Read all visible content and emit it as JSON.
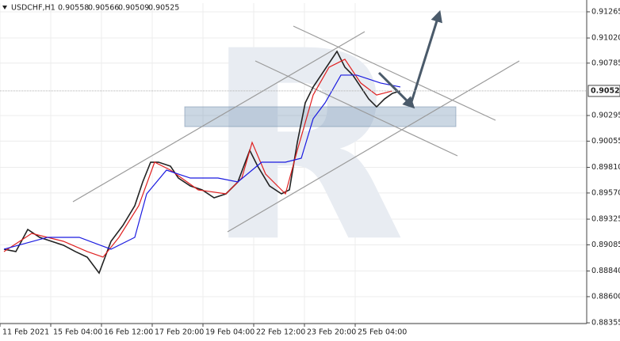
{
  "chart_data": {
    "type": "line",
    "title": "USDCHF,H1",
    "last_ohlc": [
      0.90558,
      0.90566,
      0.90509,
      0.90525
    ],
    "last_price": 0.90525,
    "xlim": [
      0,
      370
    ],
    "xticks": [
      {
        "value": 0,
        "label": "11 Feb 2021"
      },
      {
        "value": 32,
        "label": "15 Feb 04:00"
      },
      {
        "value": 64,
        "label": "16 Feb 12:00"
      },
      {
        "value": 96,
        "label": "17 Feb 20:00"
      },
      {
        "value": 128,
        "label": "19 Feb 04:00"
      },
      {
        "value": 160,
        "label": "22 Feb 12:00"
      },
      {
        "value": 192,
        "label": "23 Feb 20:00"
      },
      {
        "value": 224,
        "label": "25 Feb 04:00"
      }
    ],
    "ylim": [
      0.88348,
      0.91346
    ],
    "yticks": [
      0.91265,
      {
        "value": 0.9102,
        "label": "0.91020"
      },
      0.90785,
      0.90295,
      0.90055,
      {
        "value": 0.8981,
        "label": "0.89810"
      },
      {
        "value": 0.8957,
        "label": "0.89570"
      },
      0.89325,
      0.89085,
      {
        "value": 0.8884,
        "label": "0.88840"
      },
      {
        "value": 0.886,
        "label": "0.88600"
      },
      0.88355
    ],
    "grid": true,
    "series": [
      {
        "color": "#222222",
        "x": [
          2.5,
          10,
          17.5,
          25,
          32.5,
          40,
          47.5,
          55,
          62.5,
          70,
          77.5,
          85,
          90,
          95,
          100,
          107.5,
          112.5,
          120,
          127.5,
          135,
          142.5,
          150,
          157.5,
          162.5,
          170,
          177.5,
          182.5,
          187.5,
          192.5,
          197.5,
          202.5,
          207.5,
          212.5,
          217.5,
          222.5,
          227.5,
          232.5,
          237.5,
          242.5,
          247.5,
          252.5
        ],
        "values": [
          0.89044,
          0.89022,
          0.89229,
          0.89155,
          0.89118,
          0.89081,
          0.89022,
          0.8897,
          0.88821,
          0.89118,
          0.89266,
          0.89451,
          0.89673,
          0.89858,
          0.89858,
          0.89821,
          0.8971,
          0.89636,
          0.89599,
          0.89525,
          0.89562,
          0.89673,
          0.89969,
          0.89821,
          0.89636,
          0.89562,
          0.89599,
          0.90043,
          0.90413,
          0.90562,
          0.90673,
          0.90784,
          0.90895,
          0.90747,
          0.90673,
          0.90562,
          0.9045,
          0.90376,
          0.9045,
          0.90502,
          0.90525
        ]
      },
      {
        "color": "#e02020",
        "x": [
          2.5,
          20,
          40,
          55,
          65,
          75,
          87.5,
          97.5,
          107.5,
          125,
          142.5,
          152.5,
          159,
          167.5,
          180,
          187.5,
          197.5,
          207.5,
          217.5,
          227.5,
          237.5,
          247.5
        ],
        "values": [
          0.89022,
          0.89192,
          0.89118,
          0.89022,
          0.8897,
          0.89155,
          0.89451,
          0.89858,
          0.89784,
          0.89599,
          0.89562,
          0.8971,
          0.90043,
          0.89747,
          0.89562,
          0.89969,
          0.90487,
          0.90747,
          0.90821,
          0.90599,
          0.90487,
          0.90525
        ]
      },
      {
        "color": "#1a1ae0",
        "x": [
          2.5,
          30,
          50,
          70,
          85,
          92.5,
          105,
          120,
          137.5,
          150,
          165,
          180,
          190,
          197.5,
          205,
          215,
          225,
          240,
          252.5
        ],
        "values": [
          0.89044,
          0.89155,
          0.89155,
          0.89044,
          0.89155,
          0.89562,
          0.89784,
          0.8971,
          0.8971,
          0.89673,
          0.89858,
          0.89858,
          0.89895,
          0.90265,
          0.90413,
          0.90673,
          0.90673,
          0.90599,
          0.90562
        ]
      }
    ]
  }
}
